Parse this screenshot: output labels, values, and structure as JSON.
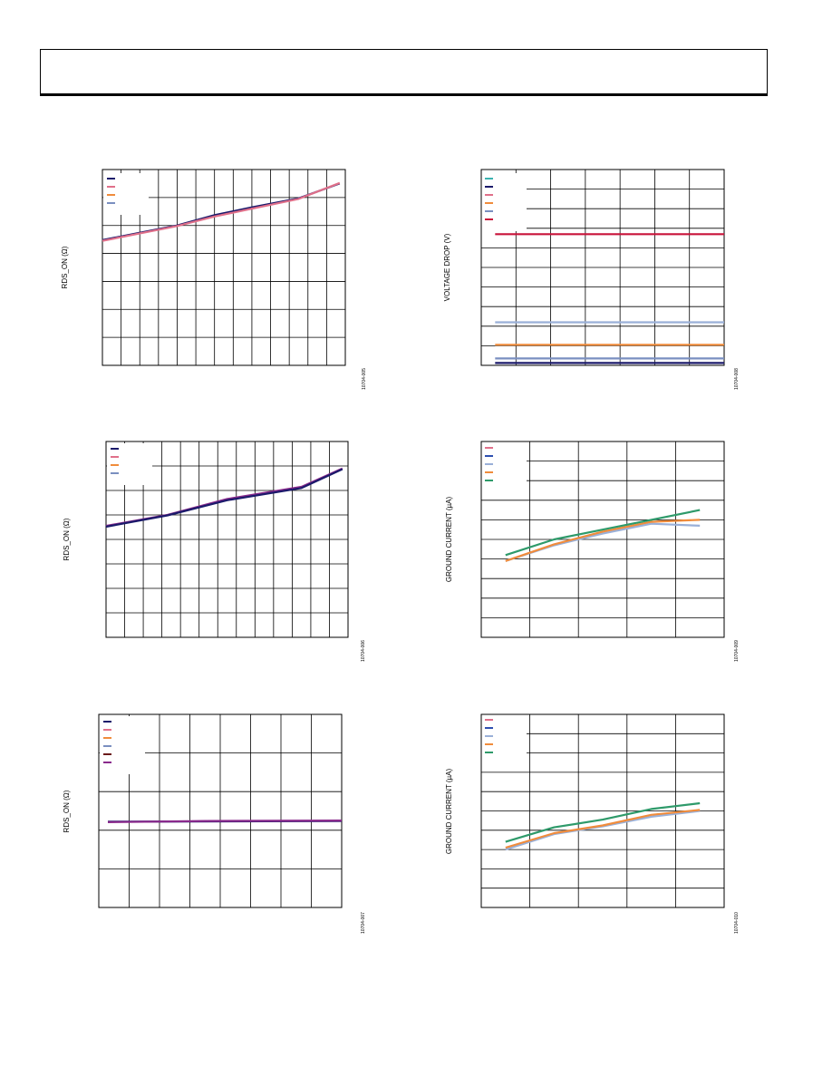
{
  "colors": {
    "navy": "#1b1a6b",
    "pink": "#e0708a",
    "orange": "#f08c3c",
    "steel": "#7a8fc0",
    "teal": "#3bb3b0",
    "crimson": "#c8133a",
    "maroon": "#6b1a1a",
    "purple": "#8a2a8c",
    "green": "#2e9a6a",
    "lightsteel": "#9ab0d8",
    "blue": "#2e4fb0"
  },
  "chart_data": [
    {
      "type": "line",
      "ylabel": "RDS_ON (Ω)",
      "fig_code": "10704-005",
      "xlim": [
        0,
        13
      ],
      "ylim": [
        0,
        7
      ],
      "x_grid": 13,
      "y_grid": 7,
      "legend_colors": [
        "navy",
        "pink",
        "orange",
        "steel"
      ],
      "series": [
        {
          "color": "navy",
          "x": [
            0,
            4,
            6,
            8,
            10.5,
            12.7
          ],
          "values": [
            4.48,
            5.0,
            5.37,
            5.65,
            5.97,
            6.5
          ]
        },
        {
          "color": "pink",
          "x": [
            0,
            4,
            6,
            8,
            10.5,
            12.7
          ],
          "values": [
            4.45,
            4.98,
            5.32,
            5.6,
            5.95,
            6.52
          ]
        }
      ]
    },
    {
      "type": "line",
      "ylabel": "VOLTAGE DROP (V)",
      "fig_code": "10704-008",
      "xlim": [
        0,
        7
      ],
      "ylim": [
        0,
        10
      ],
      "x_grid": 7,
      "y_grid": 10,
      "legend_colors": [
        "teal",
        "navy",
        "pink",
        "orange",
        "steel",
        "crimson"
      ],
      "series": [
        {
          "color": "crimson",
          "x": [
            0.4,
            7
          ],
          "values": [
            6.7,
            6.7
          ]
        },
        {
          "color": "lightsteel",
          "x": [
            0.4,
            7
          ],
          "values": [
            2.2,
            2.2
          ]
        },
        {
          "color": "orange",
          "x": [
            0.4,
            7
          ],
          "values": [
            1.05,
            1.05
          ]
        },
        {
          "color": "steel",
          "x": [
            0.4,
            7
          ],
          "values": [
            0.35,
            0.35
          ]
        },
        {
          "color": "navy",
          "x": [
            0.4,
            7
          ],
          "values": [
            0.12,
            0.12
          ]
        }
      ]
    },
    {
      "type": "line",
      "ylabel": "RDS_ON (Ω)",
      "fig_code": "10704-006",
      "xlim": [
        0,
        13
      ],
      "ylim": [
        0,
        8
      ],
      "x_grid": 13,
      "y_grid": 8,
      "legend_colors": [
        "navy",
        "pink",
        "orange",
        "steel"
      ],
      "series": [
        {
          "color": "purple",
          "x": [
            0,
            3.3,
            6.5,
            10.5,
            12.7
          ],
          "values": [
            4.55,
            5.0,
            5.65,
            6.15,
            6.9
          ]
        },
        {
          "color": "navy",
          "x": [
            0,
            3.3,
            6.5,
            10.5,
            12.7
          ],
          "values": [
            4.52,
            4.98,
            5.6,
            6.1,
            6.87
          ]
        }
      ]
    },
    {
      "type": "line",
      "ylabel": "GROUND CURRENT (µA)",
      "fig_code": "10704-009",
      "xlim": [
        0,
        5
      ],
      "ylim": [
        0,
        10
      ],
      "x_grid": 5,
      "y_grid": 10,
      "legend_colors": [
        "pink",
        "blue",
        "lightsteel",
        "orange",
        "green"
      ],
      "series": [
        {
          "color": "lightsteel",
          "x": [
            0.5,
            1.5,
            2.5,
            3.5,
            4.5
          ],
          "values": [
            3.9,
            4.7,
            5.3,
            5.8,
            5.7
          ]
        },
        {
          "color": "orange",
          "x": [
            0.5,
            1.5,
            2.5,
            3.5,
            4.5
          ],
          "values": [
            3.9,
            4.75,
            5.4,
            5.9,
            6.0
          ]
        },
        {
          "color": "green",
          "x": [
            0.5,
            1.5,
            2.5,
            3.5,
            4.5
          ],
          "values": [
            4.2,
            5.0,
            5.5,
            6.0,
            6.5
          ]
        }
      ]
    },
    {
      "type": "line",
      "ylabel": "RDS_ON (Ω)",
      "fig_code": "10704-007",
      "xlim": [
        0,
        8
      ],
      "ylim": [
        0,
        5
      ],
      "x_grid": 8,
      "y_grid": 5,
      "legend_colors": [
        "navy",
        "pink",
        "orange",
        "steel",
        "maroon",
        "purple"
      ],
      "series": [
        {
          "color": "navy",
          "x": [
            0.3,
            8
          ],
          "values": [
            2.22,
            2.24
          ]
        },
        {
          "color": "purple",
          "x": [
            0.3,
            3.5,
            8
          ],
          "values": [
            2.21,
            2.24,
            2.25
          ]
        }
      ]
    },
    {
      "type": "line",
      "ylabel": "GROUND CURRENT (µA)",
      "fig_code": "10704-010",
      "xlim": [
        0,
        5
      ],
      "ylim": [
        0,
        10
      ],
      "x_grid": 5,
      "y_grid": 10,
      "legend_colors": [
        "pink",
        "blue",
        "lightsteel",
        "orange",
        "green"
      ],
      "series": [
        {
          "color": "lightsteel",
          "x": [
            0.5,
            1.5,
            2.5,
            3.5,
            4.5
          ],
          "values": [
            3.0,
            3.8,
            4.2,
            4.7,
            5.0
          ]
        },
        {
          "color": "orange",
          "x": [
            0.5,
            1.5,
            2.5,
            3.5,
            4.5
          ],
          "values": [
            3.1,
            3.85,
            4.25,
            4.8,
            5.05
          ]
        },
        {
          "color": "green",
          "x": [
            0.5,
            1.5,
            2.5,
            3.5,
            4.5
          ],
          "values": [
            3.4,
            4.15,
            4.55,
            5.1,
            5.4
          ]
        }
      ]
    }
  ]
}
